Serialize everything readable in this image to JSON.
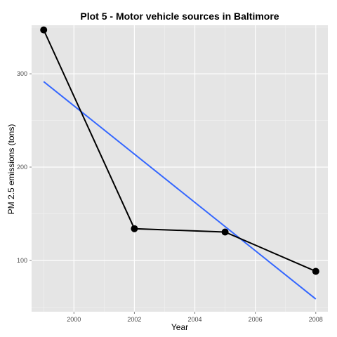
{
  "chart_data": {
    "type": "line",
    "title": "Plot 5 - Motor vehicle sources in Baltimore",
    "xlabel": "Year",
    "ylabel": "PM 2.5 emissions (tons)",
    "xlim": [
      1998.6,
      2008.4
    ],
    "ylim": [
      45,
      352
    ],
    "x_ticks": [
      2000,
      2002,
      2004,
      2006,
      2008
    ],
    "y_ticks": [
      100,
      200,
      300
    ],
    "grid": true,
    "series": [
      {
        "kind": "line+points",
        "color": "#000000",
        "x": [
          1999,
          2002,
          2005,
          2008
        ],
        "y": [
          347,
          134,
          130.4,
          88.3
        ]
      },
      {
        "kind": "linear-fit",
        "color": "#3366ff",
        "x": [
          1999,
          2008
        ],
        "y": [
          291.6,
          58.6
        ]
      }
    ]
  },
  "colors": {
    "panel_background": "#e5e5e5",
    "grid_major": "#ffffff",
    "grid_minor": "#f2f2f2"
  }
}
